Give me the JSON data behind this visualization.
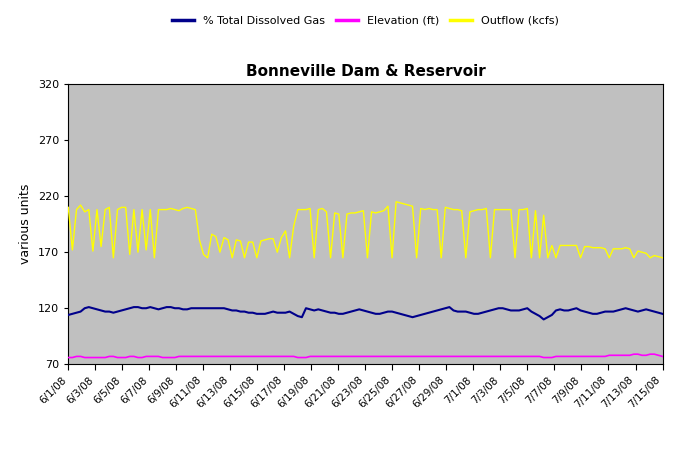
{
  "title": "Bonneville Dam & Reservoir",
  "ylabel": "various units",
  "ylim": [
    70,
    320
  ],
  "yticks": [
    70,
    120,
    170,
    220,
    270,
    320
  ],
  "background_color": "#c0c0c0",
  "fig_background": "#ffffff",
  "legend_entries": [
    "% Total Dissolved Gas",
    "Elevation (ft)",
    "Outflow (kcfs)"
  ],
  "legend_colors": [
    "#00008B",
    "#FF00FF",
    "#FFFF00"
  ],
  "xtick_labels": [
    "6/1/08",
    "6/3/08",
    "6/5/08",
    "6/7/08",
    "6/9/08",
    "6/11/08",
    "6/13/08",
    "6/15/08",
    "6/17/08",
    "6/19/08",
    "6/21/08",
    "6/23/08",
    "6/25/08",
    "6/27/08",
    "6/29/08",
    "7/1/08",
    "7/3/08",
    "7/5/08",
    "7/7/08",
    "7/9/08",
    "7/11/08",
    "7/13/08",
    "7/15/08"
  ],
  "tdg": [
    114,
    115,
    116,
    117,
    120,
    121,
    120,
    119,
    118,
    117,
    117,
    116,
    117,
    118,
    119,
    120,
    121,
    121,
    120,
    120,
    121,
    120,
    119,
    120,
    121,
    121,
    120,
    120,
    119,
    119,
    120,
    120,
    120,
    120,
    120,
    120,
    120,
    120,
    120,
    119,
    118,
    118,
    117,
    117,
    116,
    116,
    115,
    115,
    115,
    116,
    117,
    116,
    116,
    116,
    117,
    115,
    113,
    112,
    120,
    119,
    118,
    119,
    118,
    117,
    116,
    116,
    115,
    115,
    116,
    117,
    118,
    119,
    118,
    117,
    116,
    115,
    115,
    116,
    117,
    117,
    116,
    115,
    114,
    113,
    112,
    113,
    114,
    115,
    116,
    117,
    118,
    119,
    120,
    121,
    118,
    117,
    117,
    117,
    116,
    115,
    115,
    116,
    117,
    118,
    119,
    120,
    120,
    119,
    118,
    118,
    118,
    119,
    120,
    117,
    115,
    113,
    110,
    112,
    114,
    118,
    119,
    118,
    118,
    119,
    120,
    118,
    117,
    116,
    115,
    115,
    116,
    117,
    117,
    117,
    118,
    119,
    120,
    119,
    118,
    117,
    118,
    119,
    118,
    117,
    116,
    115
  ],
  "elev": [
    76,
    76,
    77,
    77,
    76,
    76,
    76,
    76,
    76,
    76,
    77,
    77,
    76,
    76,
    76,
    77,
    77,
    76,
    76,
    77,
    77,
    77,
    77,
    76,
    76,
    76,
    76,
    77,
    77,
    77,
    77,
    77,
    77,
    77,
    77,
    77,
    77,
    77,
    77,
    77,
    77,
    77,
    77,
    77,
    77,
    77,
    77,
    77,
    77,
    77,
    77,
    77,
    77,
    77,
    77,
    77,
    76,
    76,
    76,
    77,
    77,
    77,
    77,
    77,
    77,
    77,
    77,
    77,
    77,
    77,
    77,
    77,
    77,
    77,
    77,
    77,
    77,
    77,
    77,
    77,
    77,
    77,
    77,
    77,
    77,
    77,
    77,
    77,
    77,
    77,
    77,
    77,
    77,
    77,
    77,
    77,
    77,
    77,
    77,
    77,
    77,
    77,
    77,
    77,
    77,
    77,
    77,
    77,
    77,
    77,
    77,
    77,
    77,
    77,
    77,
    77,
    76,
    76,
    76,
    77,
    77,
    77,
    77,
    77,
    77,
    77,
    77,
    77,
    77,
    77,
    77,
    77,
    78,
    78,
    78,
    78,
    78,
    78,
    79,
    79,
    78,
    78,
    79,
    79,
    78,
    77
  ],
  "outflow": [
    210,
    172,
    208,
    212,
    206,
    208,
    171,
    208,
    175,
    208,
    210,
    165,
    208,
    210,
    210,
    168,
    208,
    170,
    208,
    172,
    208,
    165,
    208,
    208,
    208,
    209,
    208,
    207,
    209,
    210,
    209,
    208,
    181,
    168,
    165,
    186,
    184,
    170,
    183,
    181,
    165,
    181,
    180,
    165,
    179,
    179,
    165,
    180,
    181,
    182,
    182,
    170,
    183,
    189,
    165,
    193,
    208,
    208,
    208,
    209,
    165,
    208,
    209,
    206,
    165,
    205,
    204,
    165,
    204,
    205,
    205,
    206,
    207,
    165,
    206,
    205,
    206,
    207,
    211,
    165,
    215,
    214,
    213,
    212,
    211,
    165,
    209,
    208,
    209,
    208,
    208,
    165,
    210,
    209,
    208,
    208,
    207,
    165,
    206,
    207,
    208,
    208,
    209,
    165,
    208,
    208,
    208,
    208,
    208,
    165,
    208,
    208,
    209,
    165,
    207,
    165,
    203,
    165,
    176,
    165,
    176,
    176,
    176,
    176,
    176,
    165,
    175,
    175,
    174,
    174,
    174,
    173,
    165,
    173,
    173,
    173,
    174,
    173,
    165,
    171,
    170,
    169,
    165,
    167,
    166,
    165
  ]
}
